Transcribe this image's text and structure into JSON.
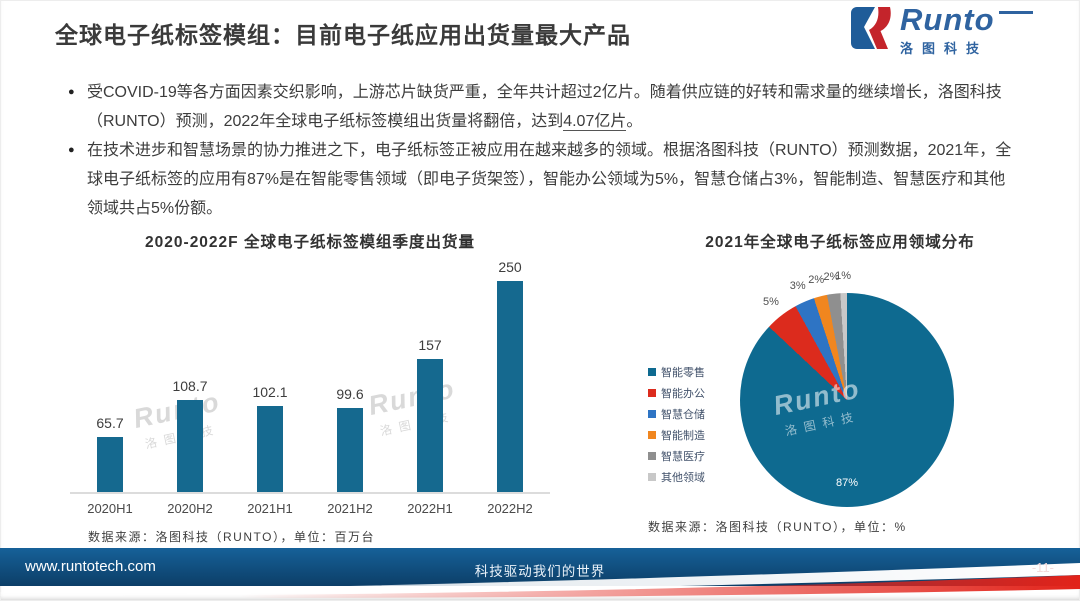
{
  "header": {
    "title": "全球电子纸标签模组：目前电子纸应用出货量最大产品",
    "logo": {
      "brand": "Runto",
      "brand_cn": "洛图科技"
    }
  },
  "bullets": [
    {
      "text_before": "受COVID-19等各方面因素交织影响，上游芯片缺货严重，全年共计超过2亿片。随着供应链的好转和需求量的继续增长，洛图科技（RUNTO）预测，2022年全球电子纸标签模组出货量将翻倍，达到",
      "emphasis": "4.07亿片",
      "text_after": "。"
    },
    {
      "text": "在技术进步和智慧场景的协力推进之下，电子纸标签正被应用在越来越多的领域。根据洛图科技（RUNTO）预测数据，2021年，全球电子纸标签的应用有87%是在智能零售领域（即电子货架签），智能办公领域为5%，智慧仓储占3%，智能制造、智慧医疗和其他领域共占5%份额。"
    }
  ],
  "chart_data": [
    {
      "type": "bar",
      "title": "2020-2022F  全球电子纸标签模组季度出货量",
      "categories": [
        "2020H1",
        "2020H2",
        "2021H1",
        "2021H2",
        "2022H1",
        "2022H2"
      ],
      "values": [
        65.7,
        108.7,
        102.1,
        99.6,
        157,
        250
      ],
      "xlabel": "",
      "ylabel": "",
      "ylim": [
        0,
        270
      ],
      "grid": false,
      "bar_color": "#15698F",
      "source": "数据来源：洛图科技（RUNTO），单位：百万台",
      "watermark": {
        "en": "Runto",
        "cn": "洛图科技"
      }
    },
    {
      "type": "pie",
      "title": "2021年全球电子纸标签应用领域分布",
      "legend_position": "left",
      "slices": [
        {
          "label": "智能零售",
          "value": 87,
          "display": "87%",
          "color": "#0E6A90"
        },
        {
          "label": "智能办公",
          "value": 5,
          "display": "5%",
          "color": "#DC2B1D"
        },
        {
          "label": "智慧仓储",
          "value": 3,
          "display": "3%",
          "color": "#2E74C4"
        },
        {
          "label": "智能制造",
          "value": 2,
          "display": "2%",
          "color": "#F0861F"
        },
        {
          "label": "智慧医疗",
          "value": 2,
          "display": "2%",
          "color": "#8F8F8F"
        },
        {
          "label": "其他领域",
          "value": 1,
          "display": "1%",
          "color": "#C8C8C8"
        }
      ],
      "source": "数据来源：洛图科技（RUNTO），单位：%",
      "watermark": {
        "en": "Runto",
        "cn": "洛图科技"
      }
    }
  ],
  "footer": {
    "website": "www.runtotech.com",
    "slogan": "科技驱动我们的世界",
    "page_number": "-11-"
  },
  "colors": {
    "title_text": "#3A3A3A",
    "logo_blue": "#2F63A0",
    "logo_red": "#C4242B",
    "divider_start": "#8D8D8D",
    "divider_end": "#CF4A30",
    "bar_teal": "#15698F",
    "footer_blue_top": "#166199",
    "footer_blue_bottom": "#0C3E67",
    "footer_red": "#E2231A"
  }
}
